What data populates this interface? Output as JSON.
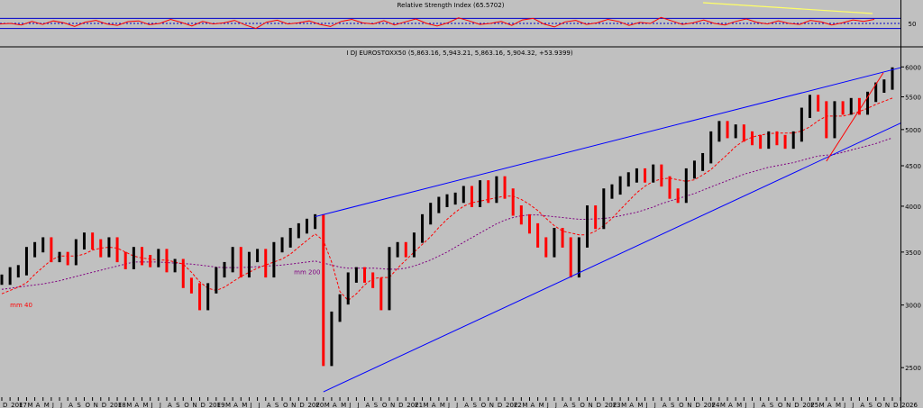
{
  "chart_data": [
    {
      "type": "line",
      "title": "Relative Strength Index (65.5702)",
      "ylim": [
        0,
        100
      ],
      "reference_levels": [
        30,
        50,
        70
      ],
      "y_ticks": [
        "50"
      ],
      "series": [
        {
          "values": [
            48,
            50,
            44,
            58,
            46,
            60,
            52,
            38,
            55,
            62,
            48,
            42,
            57,
            60,
            45,
            50,
            66,
            54,
            40,
            58,
            48,
            52,
            62,
            44,
            30,
            55,
            63,
            48,
            52,
            60,
            46,
            38,
            58,
            66,
            52,
            48,
            61,
            44,
            56,
            68,
            50,
            40,
            52,
            72,
            60,
            46,
            50,
            58,
            42,
            64,
            70,
            48,
            36,
            56,
            62,
            46,
            52,
            66,
            58,
            42,
            54,
            50,
            74,
            60,
            46,
            52,
            64,
            50,
            44,
            58,
            68,
            54,
            48,
            60,
            50,
            46,
            62,
            56,
            44,
            52,
            64,
            58,
            66
          ]
        }
      ],
      "annotations": [
        "divergence trendline"
      ],
      "colors": {
        "rsi": "#ff0000",
        "trendline": "#ffff66",
        "levels": "#0000cc"
      }
    },
    {
      "type": "line",
      "title": "I DJ EUROSTOXX50 (5,863.16, 5,943.21, 5,863.16, 5,904.32, +53.9399)",
      "y_scale": "log",
      "ylim": [
        2300,
        6100
      ],
      "y_ticks": [
        "2500",
        "3000",
        "3500",
        "4000",
        "4500",
        "5000",
        "5500",
        "6000"
      ],
      "x_ticks": [
        "D",
        "2017",
        "F",
        "M",
        "A",
        "M",
        "J",
        "J",
        "A",
        "S",
        "O",
        "N",
        "D",
        "2018",
        "F",
        "M",
        "A",
        "M",
        "J",
        "J",
        "A",
        "S",
        "O",
        "N",
        "D",
        "2019",
        "F",
        "M",
        "A",
        "M",
        "J",
        "J",
        "A",
        "S",
        "O",
        "N",
        "D",
        "2020",
        "F",
        "M",
        "A",
        "M",
        "J",
        "J",
        "A",
        "S",
        "O",
        "N",
        "D",
        "2021",
        "F",
        "M",
        "A",
        "M",
        "J",
        "J",
        "A",
        "S",
        "O",
        "N",
        "D",
        "2022",
        "F",
        "M",
        "A",
        "M",
        "J",
        "J",
        "A",
        "S",
        "O",
        "N",
        "D",
        "2023",
        "F",
        "M",
        "A",
        "M",
        "J",
        "J",
        "A",
        "S",
        "O",
        "N",
        "D",
        "2024",
        "F",
        "M",
        "A",
        "M",
        "J",
        "J",
        "A",
        "S",
        "O",
        "N",
        "D",
        "2025",
        "F",
        "M",
        "A",
        "M",
        "J",
        "J",
        "A",
        "S",
        "O",
        "N",
        "D",
        "2026"
      ],
      "x": [
        "2016-12",
        "2017-01",
        "2017-02",
        "2017-03",
        "2017-04",
        "2017-05",
        "2017-06",
        "2017-07",
        "2017-08",
        "2017-09",
        "2017-10",
        "2017-11",
        "2017-12",
        "2018-01",
        "2018-02",
        "2018-03",
        "2018-04",
        "2018-05",
        "2018-06",
        "2018-07",
        "2018-08",
        "2018-09",
        "2018-10",
        "2018-11",
        "2018-12",
        "2019-01",
        "2019-02",
        "2019-03",
        "2019-04",
        "2019-05",
        "2019-06",
        "2019-07",
        "2019-08",
        "2019-09",
        "2019-10",
        "2019-11",
        "2019-12",
        "2020-01",
        "2020-02",
        "2020-03",
        "2020-04",
        "2020-05",
        "2020-06",
        "2020-07",
        "2020-08",
        "2020-09",
        "2020-10",
        "2020-11",
        "2020-12",
        "2021-01",
        "2021-02",
        "2021-03",
        "2021-04",
        "2021-05",
        "2021-06",
        "2021-07",
        "2021-08",
        "2021-09",
        "2021-10",
        "2021-11",
        "2021-12",
        "2022-01",
        "2022-02",
        "2022-03",
        "2022-04",
        "2022-05",
        "2022-06",
        "2022-07",
        "2022-08",
        "2022-09",
        "2022-10",
        "2022-11",
        "2022-12",
        "2023-01",
        "2023-02",
        "2023-03",
        "2023-04",
        "2023-05",
        "2023-06",
        "2023-07",
        "2023-08",
        "2023-09",
        "2023-10",
        "2023-11",
        "2023-12",
        "2024-01",
        "2024-02",
        "2024-03",
        "2024-04",
        "2024-05",
        "2024-06",
        "2024-07",
        "2024-08",
        "2024-09",
        "2024-10",
        "2024-11",
        "2024-12",
        "2025-01",
        "2025-02",
        "2025-03",
        "2025-04",
        "2025-05",
        "2025-06",
        "2025-07",
        "2025-08",
        "2025-09",
        "2025-10",
        "2025-11",
        "2025-12"
      ],
      "series": [
        {
          "name": "I DJ EUROSTOXX50",
          "values": [
            3230,
            3300,
            3320,
            3500,
            3550,
            3600,
            3450,
            3450,
            3420,
            3580,
            3650,
            3580,
            3500,
            3600,
            3450,
            3380,
            3500,
            3420,
            3400,
            3480,
            3350,
            3380,
            3200,
            3150,
            3000,
            3150,
            3300,
            3350,
            3500,
            3300,
            3450,
            3480,
            3300,
            3550,
            3600,
            3700,
            3750,
            3800,
            3850,
            2550,
            2900,
            3050,
            3250,
            3300,
            3250,
            3200,
            3000,
            3500,
            3550,
            3500,
            3650,
            3850,
            3980,
            4050,
            4080,
            4100,
            4180,
            4050,
            4250,
            4100,
            4300,
            4150,
            3950,
            3850,
            3750,
            3600,
            3500,
            3700,
            3600,
            3300,
            3600,
            3950,
            3800,
            4150,
            4200,
            4300,
            4350,
            4400,
            4350,
            4450,
            4300,
            4150,
            4100,
            4400,
            4500,
            4600,
            4900,
            5050,
            4950,
            5000,
            4900,
            4850,
            4800,
            4900,
            4850,
            4800,
            4900,
            5250,
            5450,
            5350,
            4950,
            5350,
            5300,
            5400,
            5300,
            5500,
            5650,
            5700,
            5904
          ]
        },
        {
          "name": "mm 40",
          "values": [
            3100,
            3130,
            3160,
            3200,
            3280,
            3350,
            3420,
            3460,
            3460,
            3460,
            3480,
            3520,
            3540,
            3550,
            3540,
            3500,
            3460,
            3440,
            3430,
            3420,
            3420,
            3400,
            3380,
            3300,
            3210,
            3150,
            3130,
            3160,
            3210,
            3260,
            3300,
            3340,
            3370,
            3400,
            3430,
            3480,
            3550,
            3620,
            3690,
            3620,
            3400,
            3120,
            3040,
            3100,
            3180,
            3240,
            3250,
            3250,
            3340,
            3420,
            3500,
            3580,
            3660,
            3760,
            3850,
            3930,
            4000,
            4040,
            4060,
            4080,
            4100,
            4120,
            4120,
            4080,
            4020,
            3950,
            3860,
            3780,
            3720,
            3700,
            3680,
            3680,
            3720,
            3780,
            3860,
            3960,
            4060,
            4160,
            4240,
            4300,
            4330,
            4340,
            4320,
            4300,
            4320,
            4380,
            4450,
            4550,
            4650,
            4760,
            4840,
            4890,
            4920,
            4940,
            4950,
            4950,
            4950,
            4980,
            5040,
            5130,
            5200,
            5200,
            5200,
            5230,
            5270,
            5320,
            5380,
            5430,
            5480
          ]
        },
        {
          "name": "mm 200",
          "values": [
            3140,
            3150,
            3160,
            3170,
            3180,
            3190,
            3205,
            3220,
            3240,
            3260,
            3280,
            3300,
            3320,
            3340,
            3360,
            3380,
            3400,
            3400,
            3400,
            3400,
            3395,
            3390,
            3385,
            3380,
            3370,
            3360,
            3350,
            3345,
            3345,
            3345,
            3350,
            3355,
            3360,
            3365,
            3370,
            3380,
            3390,
            3400,
            3410,
            3390,
            3370,
            3350,
            3340,
            3340,
            3340,
            3340,
            3335,
            3330,
            3330,
            3340,
            3360,
            3390,
            3420,
            3460,
            3500,
            3550,
            3600,
            3650,
            3700,
            3750,
            3800,
            3840,
            3870,
            3890,
            3900,
            3900,
            3890,
            3880,
            3870,
            3860,
            3850,
            3850,
            3855,
            3860,
            3870,
            3890,
            3910,
            3930,
            3960,
            3990,
            4030,
            4060,
            4090,
            4120,
            4150,
            4190,
            4230,
            4270,
            4310,
            4350,
            4390,
            4420,
            4450,
            4480,
            4500,
            4520,
            4540,
            4570,
            4600,
            4630,
            4640,
            4650,
            4680,
            4710,
            4740,
            4770,
            4800,
            4840,
            4880
          ]
        }
      ],
      "annotations": [
        "mm 40",
        "mm 200"
      ],
      "colors": {
        "price_up": "#000000",
        "price_down": "#ff0000",
        "mm40": "#ff0000",
        "mm200": "#800080",
        "channel": "#0000ff",
        "support": "#ff0000"
      }
    }
  ]
}
